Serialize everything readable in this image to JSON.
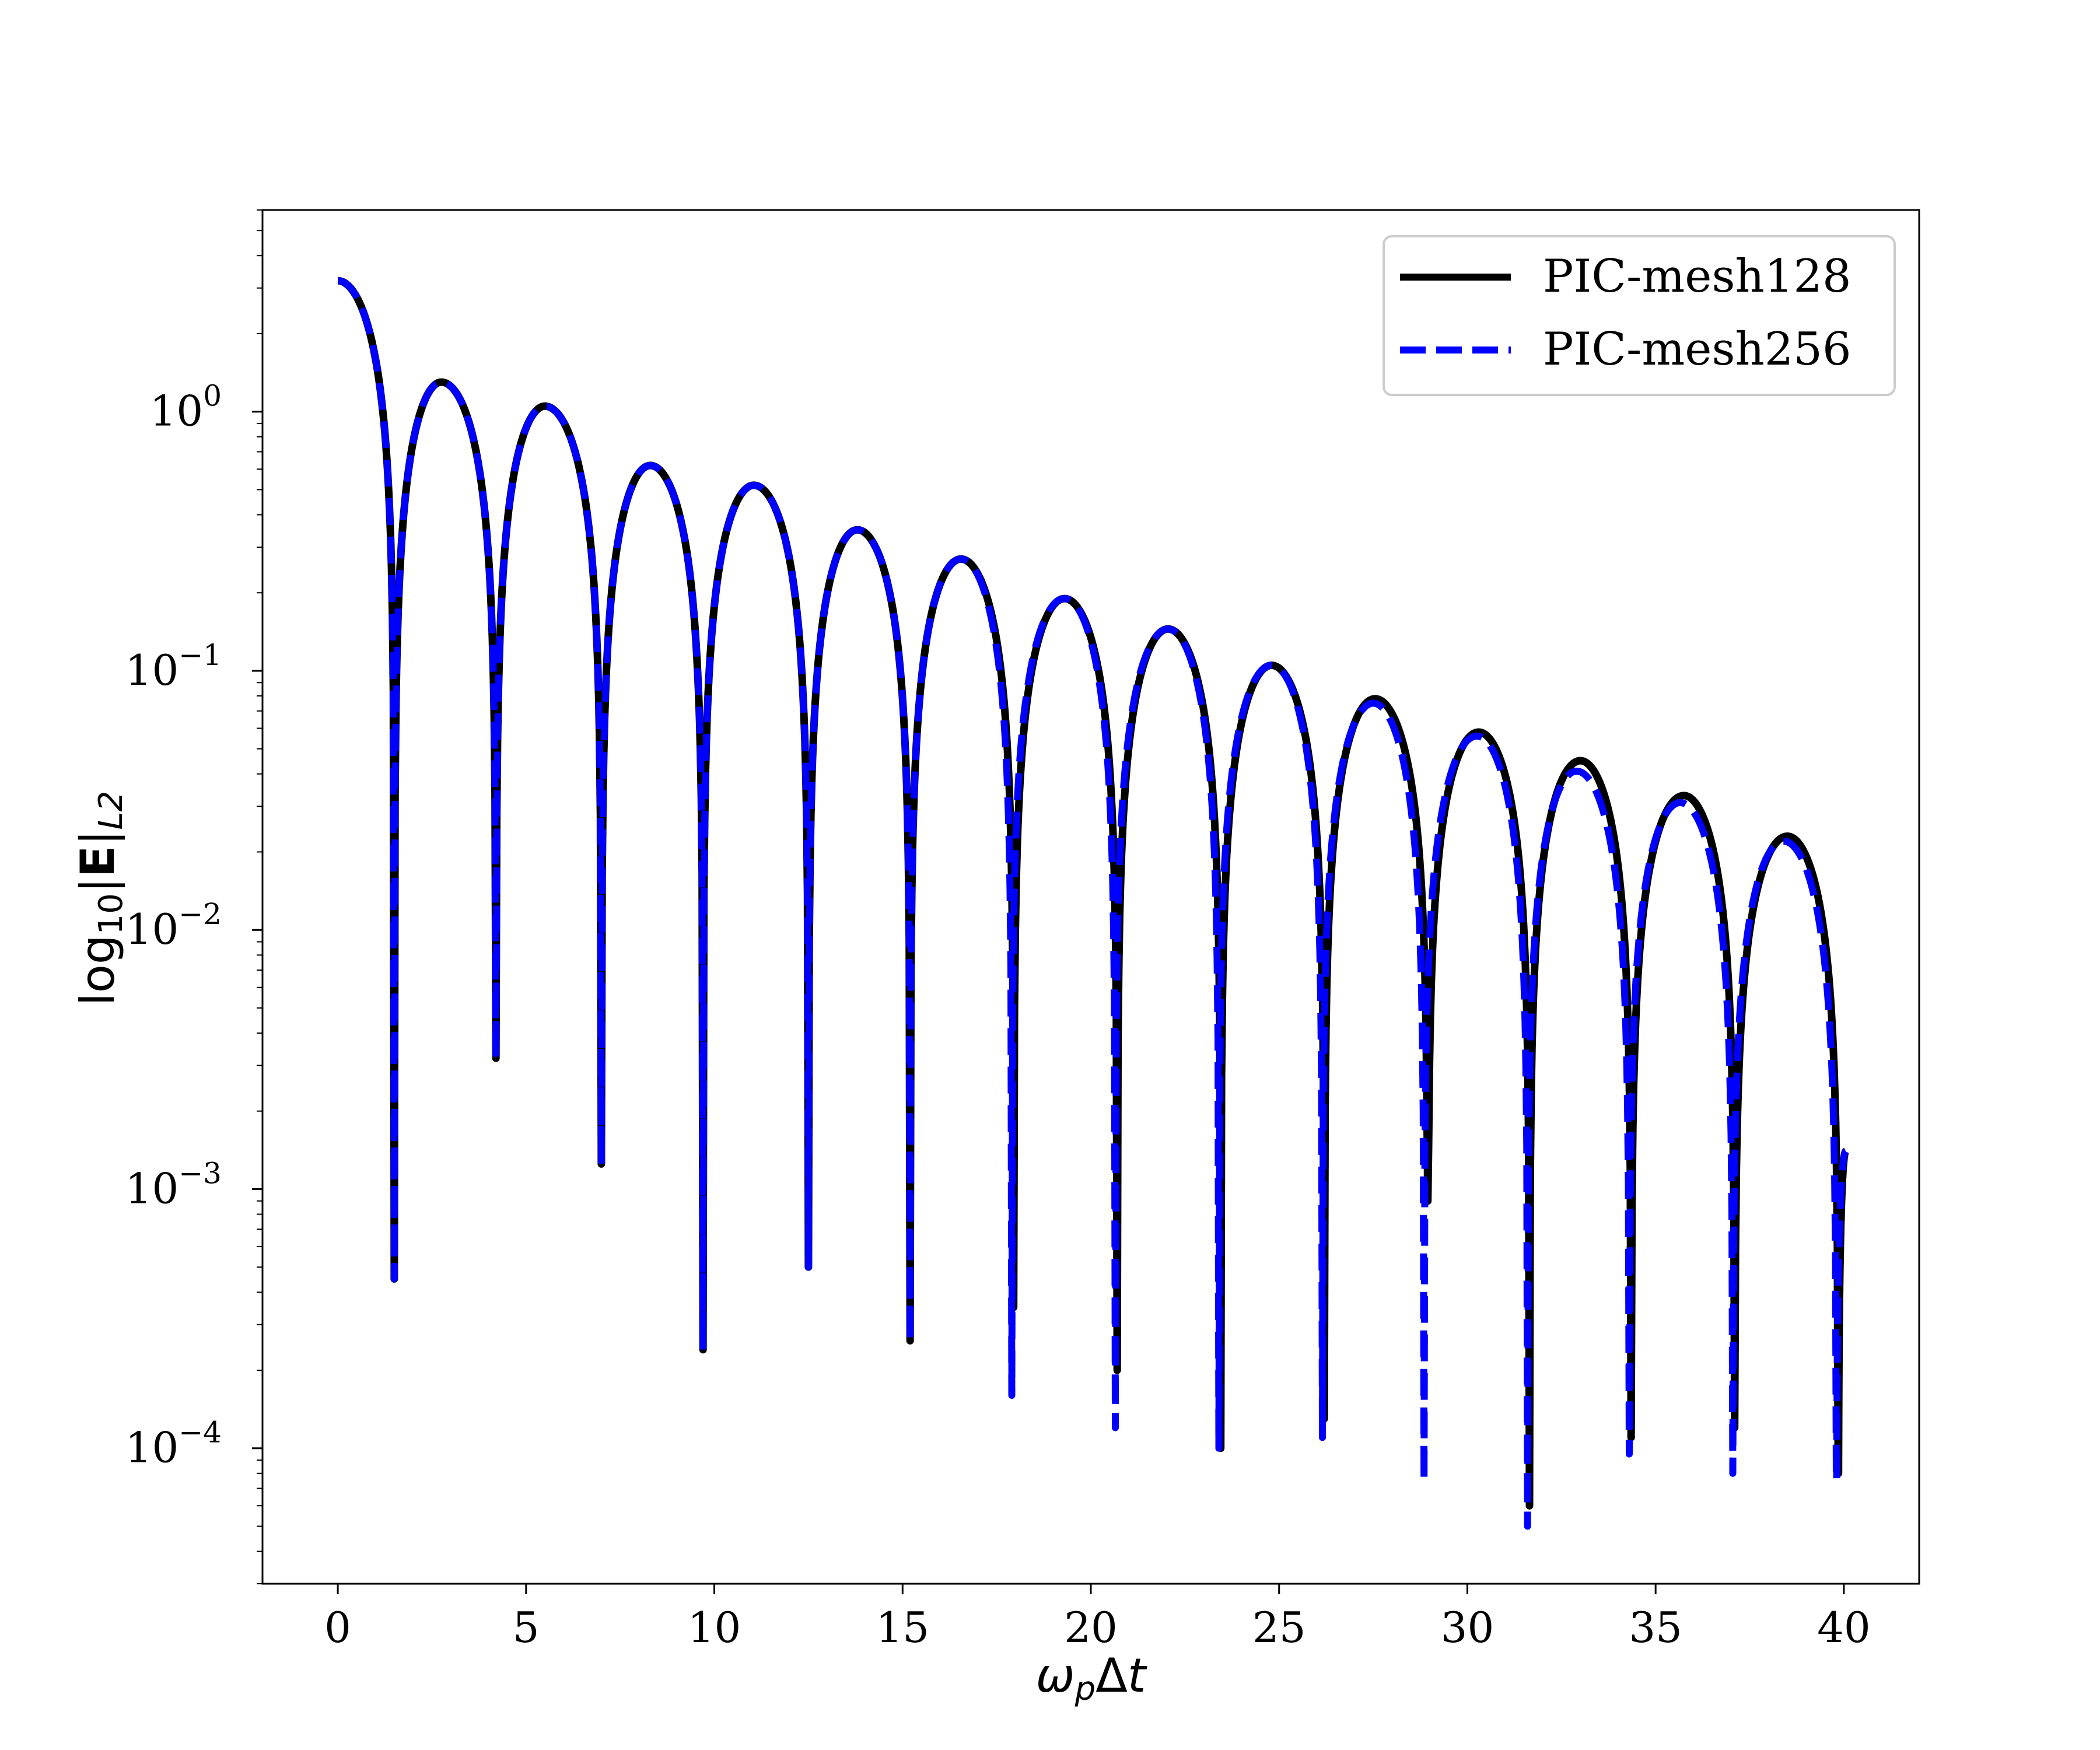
{
  "chart_data": {
    "type": "line",
    "title": "",
    "xlabel": "ω_pΔt",
    "ylabel": "log10|E|_L2",
    "x_scale": "linear",
    "y_scale": "log",
    "xlim": [
      -2,
      42
    ],
    "ylim": [
      3e-05,
      6
    ],
    "x_ticks": [
      0,
      5,
      10,
      15,
      20,
      25,
      30,
      35,
      40
    ],
    "y_ticks": [
      {
        "value": 0.0001,
        "base": "10",
        "exp": "−4"
      },
      {
        "value": 0.001,
        "base": "10",
        "exp": "−3"
      },
      {
        "value": 0.01,
        "base": "10",
        "exp": "−2"
      },
      {
        "value": 0.1,
        "base": "10",
        "exp": "−1"
      },
      {
        "value": 1,
        "base": "10",
        "exp": "0"
      }
    ],
    "grid": false,
    "legend_position": "upper-right",
    "series": [
      {
        "name": "PIC-mesh128",
        "color": "#000000",
        "style": "solid",
        "start": {
          "x": 0,
          "y": 3.2
        },
        "period": 2.75,
        "peaks": [
          {
            "x": 2.75,
            "y": 1.3
          },
          {
            "x": 5.5,
            "y": 1.05
          },
          {
            "x": 8.3,
            "y": 0.62
          },
          {
            "x": 11.05,
            "y": 0.52
          },
          {
            "x": 13.8,
            "y": 0.35
          },
          {
            "x": 16.55,
            "y": 0.27
          },
          {
            "x": 19.3,
            "y": 0.19
          },
          {
            "x": 22.05,
            "y": 0.145
          },
          {
            "x": 24.8,
            "y": 0.105
          },
          {
            "x": 27.55,
            "y": 0.078
          },
          {
            "x": 30.3,
            "y": 0.058
          },
          {
            "x": 33.0,
            "y": 0.045
          },
          {
            "x": 35.75,
            "y": 0.033
          },
          {
            "x": 38.5,
            "y": 0.023
          }
        ],
        "minima": [
          {
            "x": 1.5,
            "y": 0.00045
          },
          {
            "x": 4.2,
            "y": 0.0032
          },
          {
            "x": 7.0,
            "y": 0.00125
          },
          {
            "x": 9.7,
            "y": 0.00024
          },
          {
            "x": 12.5,
            "y": 0.0005
          },
          {
            "x": 15.2,
            "y": 0.00026
          },
          {
            "x": 17.95,
            "y": 0.00035
          },
          {
            "x": 20.7,
            "y": 0.0002
          },
          {
            "x": 23.45,
            "y": 0.0001
          },
          {
            "x": 26.2,
            "y": 0.00013
          },
          {
            "x": 28.95,
            "y": 0.0009
          },
          {
            "x": 31.65,
            "y": 6e-05
          },
          {
            "x": 34.35,
            "y": 0.00011
          },
          {
            "x": 37.1,
            "y": 0.00012
          },
          {
            "x": 39.85,
            "y": 8e-05
          }
        ],
        "end": {
          "x": 40.05,
          "y": 0.0014
        }
      },
      {
        "name": "PIC-mesh256",
        "color": "#0000ff",
        "style": "dashed",
        "start": {
          "x": 0,
          "y": 3.2
        },
        "period": 2.75,
        "peaks": [
          {
            "x": 2.75,
            "y": 1.3
          },
          {
            "x": 5.5,
            "y": 1.05
          },
          {
            "x": 8.3,
            "y": 0.62
          },
          {
            "x": 11.05,
            "y": 0.52
          },
          {
            "x": 13.8,
            "y": 0.35
          },
          {
            "x": 16.55,
            "y": 0.27
          },
          {
            "x": 19.3,
            "y": 0.19
          },
          {
            "x": 22.05,
            "y": 0.145
          },
          {
            "x": 24.8,
            "y": 0.105
          },
          {
            "x": 27.5,
            "y": 0.075
          },
          {
            "x": 30.25,
            "y": 0.056
          },
          {
            "x": 32.9,
            "y": 0.041
          },
          {
            "x": 35.65,
            "y": 0.031
          },
          {
            "x": 38.4,
            "y": 0.022
          }
        ],
        "minima": [
          {
            "x": 1.5,
            "y": 0.00045
          },
          {
            "x": 4.2,
            "y": 0.0032
          },
          {
            "x": 7.0,
            "y": 0.00125
          },
          {
            "x": 9.7,
            "y": 0.00024
          },
          {
            "x": 12.5,
            "y": 0.0005
          },
          {
            "x": 15.2,
            "y": 0.00026
          },
          {
            "x": 17.9,
            "y": 0.00016
          },
          {
            "x": 20.65,
            "y": 0.00012
          },
          {
            "x": 23.4,
            "y": 0.0001
          },
          {
            "x": 26.15,
            "y": 0.00011
          },
          {
            "x": 28.85,
            "y": 7.5e-05
          },
          {
            "x": 31.6,
            "y": 5e-05
          },
          {
            "x": 34.3,
            "y": 9.5e-05
          },
          {
            "x": 37.05,
            "y": 8e-05
          },
          {
            "x": 39.8,
            "y": 7.5e-05
          }
        ],
        "end": {
          "x": 40.05,
          "y": 0.0014
        }
      }
    ]
  }
}
